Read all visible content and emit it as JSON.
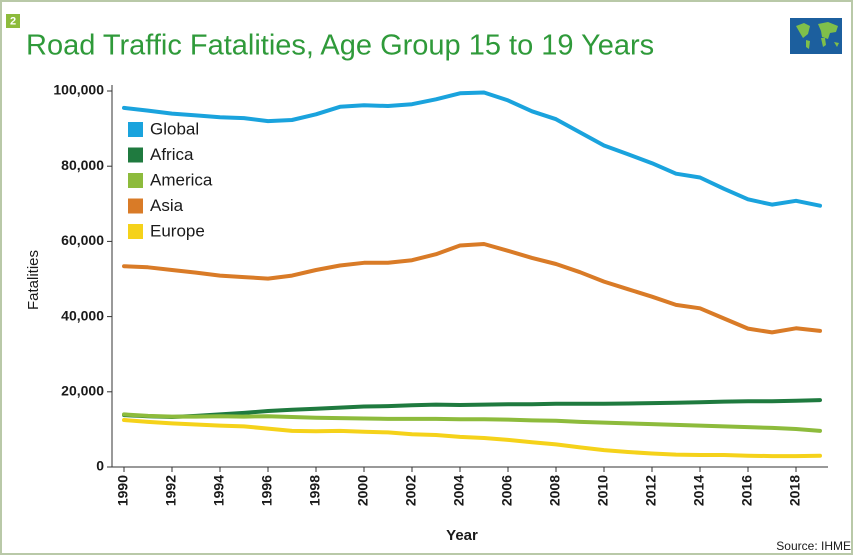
{
  "chart_data": {
    "type": "line",
    "badge": "2",
    "title": "Road Traffic Fatalities, Age Group 15 to 19 Years",
    "y_label": "Fatalities",
    "x_label": "Year",
    "source": "Source: IHME",
    "legend": "upper left",
    "x": [
      1990,
      1991,
      1992,
      1993,
      1994,
      1995,
      1996,
      1997,
      1998,
      1999,
      2000,
      2001,
      2002,
      2003,
      2004,
      2005,
      2006,
      2007,
      2008,
      2009,
      2010,
      2011,
      2012,
      2013,
      2014,
      2015,
      2016,
      2017,
      2018,
      2019
    ],
    "xlim": [
      1990,
      2019
    ],
    "xticks": [
      1990,
      1992,
      1994,
      1996,
      1998,
      2000,
      2002,
      2004,
      2006,
      2008,
      2010,
      2012,
      2014,
      2016,
      2018
    ],
    "ylim": [
      0,
      100000
    ],
    "yticks": [
      0,
      {
        "value": 20000,
        "label": "20,000"
      },
      {
        "value": 40000,
        "label": "40,000"
      },
      {
        "value": 60000,
        "label": "60,000"
      },
      {
        "value": 80000,
        "label": "80,000"
      },
      {
        "value": 100000,
        "label": "100,000"
      }
    ],
    "series": [
      {
        "name": "Global",
        "color": "#1aa3dd",
        "values": [
          95500,
          94800,
          94000,
          93500,
          93000,
          92800,
          92000,
          92300,
          93800,
          95800,
          96200,
          96000,
          96500,
          97800,
          99400,
          99600,
          97500,
          94600,
          92500,
          89000,
          85500,
          83200,
          80800,
          78000,
          77000,
          74000,
          71200,
          69800,
          70800,
          69500
        ]
      },
      {
        "name": "Africa",
        "color": "#1f7a3f",
        "values": [
          13800,
          13500,
          13300,
          13600,
          14000,
          14400,
          14900,
          15200,
          15500,
          15800,
          16100,
          16200,
          16400,
          16600,
          16500,
          16600,
          16700,
          16700,
          16800,
          16800,
          16800,
          16900,
          17000,
          17100,
          17200,
          17400,
          17500,
          17500,
          17600,
          17800
        ]
      },
      {
        "name": "America",
        "color": "#8dbb3c",
        "values": [
          14000,
          13600,
          13400,
          13400,
          13500,
          13400,
          13500,
          13300,
          13100,
          13000,
          12900,
          12800,
          12800,
          12800,
          12700,
          12700,
          12600,
          12400,
          12300,
          12000,
          11800,
          11600,
          11400,
          11200,
          11000,
          10800,
          10600,
          10400,
          10100,
          9600
        ]
      },
      {
        "name": "Asia",
        "color": "#d97b27",
        "values": [
          53400,
          53100,
          52400,
          51700,
          50900,
          50500,
          50100,
          50900,
          52400,
          53600,
          54300,
          54300,
          55000,
          56600,
          58900,
          59300,
          57500,
          55600,
          54000,
          51800,
          49300,
          47300,
          45300,
          43100,
          42200,
          39500,
          36800,
          35800,
          36900,
          36200
        ]
      },
      {
        "name": "Europe",
        "color": "#f5d21a",
        "values": [
          12500,
          12000,
          11600,
          11300,
          11000,
          10800,
          10200,
          9600,
          9500,
          9600,
          9400,
          9200,
          8700,
          8500,
          8000,
          7700,
          7200,
          6600,
          6000,
          5200,
          4500,
          4000,
          3600,
          3300,
          3200,
          3200,
          3000,
          2900,
          2900,
          3000
        ]
      }
    ]
  }
}
